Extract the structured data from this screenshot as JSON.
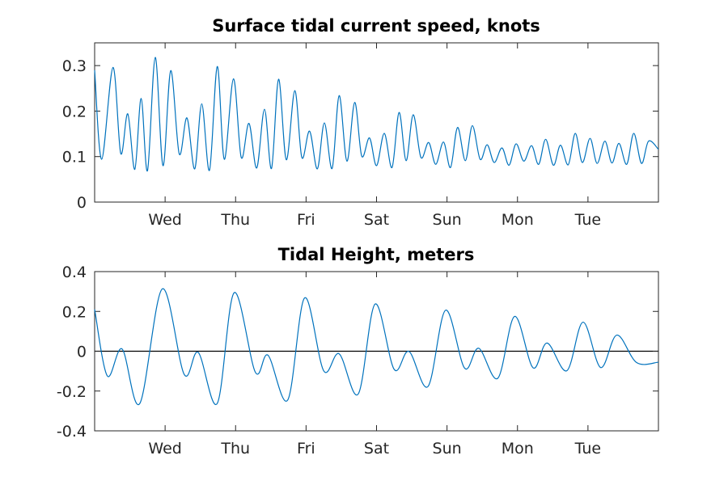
{
  "colors": {
    "series": "#0072BD",
    "axis": "#262626",
    "zero_line": "#000000"
  },
  "x_day_labels": [
    "Wed",
    "Thu",
    "Fri",
    "Sat",
    "Sun",
    "Mon",
    "Tue"
  ],
  "chart_data": [
    {
      "type": "line",
      "title": "Surface tidal current speed, knots",
      "xlabel": "",
      "ylabel": "",
      "xlim": [
        0,
        8
      ],
      "ylim": [
        0,
        0.35
      ],
      "y_ticks": [
        0,
        0.1,
        0.2,
        0.3
      ],
      "y_tick_labels": [
        "0",
        "0.1",
        "0.2",
        "0.3"
      ],
      "x_ticks": [
        1,
        2,
        3,
        4,
        5,
        6,
        7
      ],
      "x_tick_labels": [
        "Wed",
        "Thu",
        "Fri",
        "Sat",
        "Sun",
        "Mon",
        "Tue"
      ],
      "grid": false,
      "series": [
        {
          "x": [
            0.0,
            0.1,
            0.26,
            0.37,
            0.47,
            0.57,
            0.66,
            0.75,
            0.86,
            0.97,
            1.08,
            1.2,
            1.31,
            1.42,
            1.52,
            1.63,
            1.74,
            1.84,
            1.97,
            2.08,
            2.19,
            2.3,
            2.41,
            2.51,
            2.61,
            2.72,
            2.84,
            2.94,
            3.05,
            3.16,
            3.26,
            3.37,
            3.47,
            3.58,
            3.69,
            3.79,
            3.9,
            4.0,
            4.11,
            4.22,
            4.32,
            4.42,
            4.52,
            4.63,
            4.74,
            4.84,
            4.95,
            5.05,
            5.15,
            5.26,
            5.36,
            5.47,
            5.57,
            5.67,
            5.78,
            5.88,
            5.98,
            6.09,
            6.2,
            6.3,
            6.4,
            6.51,
            6.61,
            6.72,
            6.82,
            6.92,
            7.03,
            7.13,
            7.24,
            7.34,
            7.44,
            7.55,
            7.65,
            7.76,
            7.86,
            8.0
          ],
          "y": [
            0.29,
            0.094,
            0.296,
            0.107,
            0.194,
            0.072,
            0.228,
            0.069,
            0.318,
            0.08,
            0.289,
            0.106,
            0.185,
            0.073,
            0.216,
            0.07,
            0.298,
            0.094,
            0.271,
            0.098,
            0.173,
            0.075,
            0.204,
            0.074,
            0.27,
            0.093,
            0.245,
            0.098,
            0.156,
            0.073,
            0.174,
            0.074,
            0.234,
            0.09,
            0.219,
            0.101,
            0.141,
            0.08,
            0.151,
            0.076,
            0.197,
            0.091,
            0.192,
            0.098,
            0.131,
            0.083,
            0.132,
            0.076,
            0.164,
            0.091,
            0.168,
            0.094,
            0.126,
            0.087,
            0.119,
            0.081,
            0.128,
            0.09,
            0.124,
            0.083,
            0.138,
            0.081,
            0.125,
            0.082,
            0.151,
            0.087,
            0.14,
            0.085,
            0.134,
            0.086,
            0.129,
            0.083,
            0.151,
            0.085,
            0.134,
            0.116
          ]
        }
      ]
    },
    {
      "type": "line",
      "title": "Tidal Height, meters",
      "xlabel": "",
      "ylabel": "",
      "xlim": [
        0,
        8
      ],
      "ylim": [
        -0.4,
        0.4
      ],
      "y_ticks": [
        -0.4,
        -0.2,
        0,
        0.2,
        0.4
      ],
      "y_tick_labels": [
        "-0.4",
        "-0.2",
        "0",
        "0.2",
        "0.4"
      ],
      "x_ticks": [
        1,
        2,
        3,
        4,
        5,
        6,
        7
      ],
      "x_tick_labels": [
        "Wed",
        "Thu",
        "Fri",
        "Sat",
        "Sun",
        "Mon",
        "Tue"
      ],
      "zero_line": true,
      "grid": false,
      "series": [
        {
          "x": [
            0.0,
            0.18,
            0.39,
            0.64,
            0.96,
            1.27,
            1.47,
            1.74,
            1.98,
            2.28,
            2.46,
            2.74,
            2.98,
            3.25,
            3.47,
            3.74,
            3.98,
            4.25,
            4.46,
            4.73,
            4.98,
            5.25,
            5.45,
            5.72,
            5.96,
            6.22,
            6.42,
            6.7,
            6.93,
            7.18,
            7.41,
            7.69,
            8.0
          ],
          "y": [
            0.21,
            -0.124,
            0.011,
            -0.263,
            0.313,
            -0.116,
            -0.006,
            -0.262,
            0.294,
            -0.105,
            -0.02,
            -0.245,
            0.268,
            -0.098,
            -0.013,
            -0.215,
            0.237,
            -0.091,
            -0.001,
            -0.177,
            0.206,
            -0.085,
            0.015,
            -0.136,
            0.175,
            -0.083,
            0.041,
            -0.098,
            0.146,
            -0.082,
            0.081,
            -0.057,
            -0.055
          ]
        }
      ]
    }
  ]
}
